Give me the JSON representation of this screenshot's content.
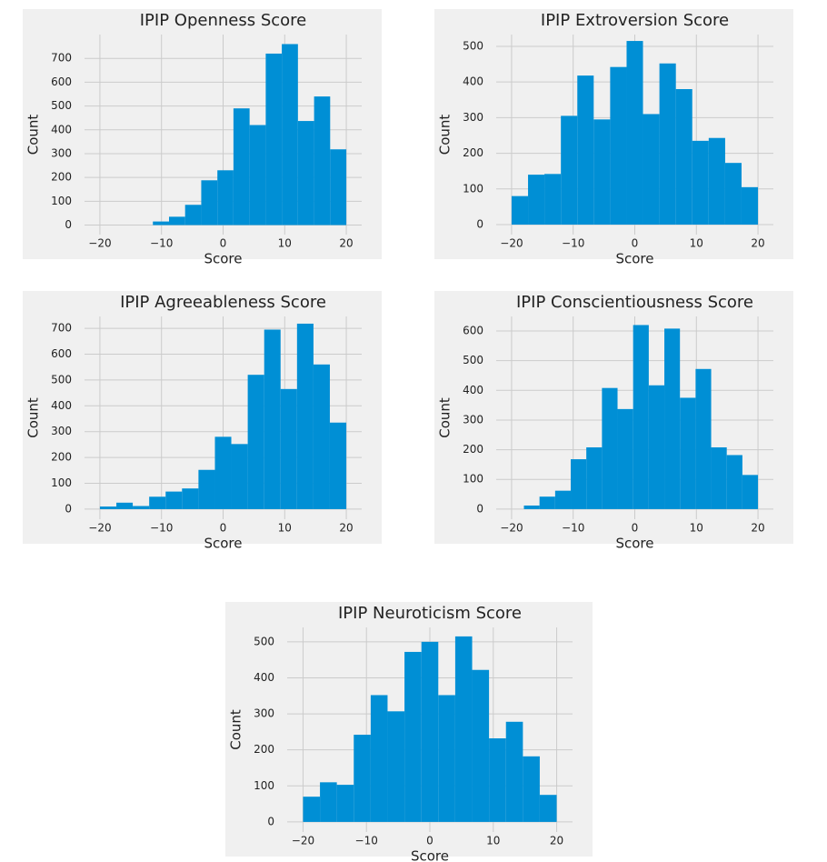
{
  "chart_data": [
    {
      "type": "histogram",
      "title": "IPIP Openness Score",
      "xlabel": "Score",
      "ylabel": "Count",
      "color": "#008fd5",
      "grid": true,
      "bins": [
        -11.4,
        -8.78,
        -6.17,
        -3.55,
        -0.93,
        1.68,
        4.3,
        6.92,
        9.53,
        12.15,
        14.77,
        17.38,
        20
      ],
      "values": [
        15,
        35,
        85,
        188,
        230,
        490,
        420,
        720,
        760,
        437,
        540,
        318
      ],
      "xlim": [
        -22.5,
        22.5
      ],
      "xticks": [
        {
          "value": -20,
          "label": "−20"
        },
        {
          "value": -10,
          "label": "−10"
        },
        0,
        10,
        20
      ],
      "ylim": [
        -40,
        800
      ],
      "yticks": [
        0,
        100,
        200,
        300,
        400,
        500,
        600,
        700
      ]
    },
    {
      "type": "histogram",
      "title": "IPIP Extroversion Score",
      "xlabel": "Score",
      "ylabel": "Count",
      "color": "#008fd5",
      "grid": true,
      "bins": [
        -20,
        -17.33,
        -14.67,
        -12,
        -9.33,
        -6.67,
        -4,
        -1.33,
        1.33,
        4,
        6.67,
        9.33,
        12,
        14.67,
        17.33,
        20
      ],
      "values": [
        80,
        140,
        142,
        305,
        418,
        295,
        442,
        515,
        310,
        452,
        380,
        235,
        243,
        173,
        105
      ],
      "xlim": [
        -22.5,
        22.5
      ],
      "xticks": [
        {
          "value": -20,
          "label": "−20"
        },
        {
          "value": -10,
          "label": "−10"
        },
        0,
        10,
        20
      ],
      "ylim": [
        -28,
        533
      ],
      "yticks": [
        0,
        100,
        200,
        300,
        400,
        500
      ]
    },
    {
      "type": "histogram",
      "title": "IPIP Agreeableness Score",
      "xlabel": "Score",
      "ylabel": "Count",
      "color": "#008fd5",
      "grid": true,
      "bins": [
        -20,
        -17.33,
        -14.67,
        -12,
        -9.33,
        -6.67,
        -4,
        -1.33,
        1.33,
        4,
        6.67,
        9.33,
        12,
        14.67,
        17.33,
        20
      ],
      "values": [
        10,
        25,
        12,
        48,
        68,
        80,
        152,
        280,
        252,
        520,
        695,
        465,
        718,
        560,
        335
      ],
      "xlim": [
        -22.5,
        22.5
      ],
      "xticks": [
        {
          "value": -20,
          "label": "−20"
        },
        {
          "value": -10,
          "label": "−10"
        },
        0,
        10,
        20
      ],
      "ylim": [
        -39,
        746
      ],
      "yticks": [
        0,
        100,
        200,
        300,
        400,
        500,
        600,
        700
      ]
    },
    {
      "type": "histogram",
      "title": "IPIP Conscientiousness Score",
      "xlabel": "Score",
      "ylabel": "Count",
      "color": "#008fd5",
      "grid": true,
      "bins": [
        -18,
        -15.47,
        -12.93,
        -10.4,
        -7.87,
        -5.33,
        -2.8,
        -0.27,
        2.27,
        4.8,
        7.33,
        9.87,
        12.4,
        14.93,
        17.47,
        20
      ],
      "values": [
        12,
        42,
        62,
        168,
        208,
        408,
        337,
        620,
        417,
        608,
        375,
        472,
        208,
        182,
        115
      ],
      "xlim": [
        -22.5,
        22.5
      ],
      "xticks": [
        {
          "value": -20,
          "label": "−20"
        },
        {
          "value": -10,
          "label": "−10"
        },
        0,
        10,
        20
      ],
      "ylim": [
        -34,
        649
      ],
      "yticks": [
        0,
        100,
        200,
        300,
        400,
        500,
        600
      ]
    },
    {
      "type": "histogram",
      "title": "IPIP Neuroticism Score",
      "xlabel": "Score",
      "ylabel": "Count",
      "color": "#008fd5",
      "grid": true,
      "bins": [
        -20,
        -17.33,
        -14.67,
        -12,
        -9.33,
        -6.67,
        -4,
        -1.33,
        1.33,
        4,
        6.67,
        9.33,
        12,
        14.67,
        17.33,
        20
      ],
      "values": [
        70,
        110,
        103,
        242,
        352,
        307,
        472,
        500,
        352,
        515,
        422,
        232,
        278,
        182,
        75
      ],
      "xlim": [
        -22.5,
        22.5
      ],
      "xticks": [
        {
          "value": -20,
          "label": "−20"
        },
        {
          "value": -10,
          "label": "−10"
        },
        0,
        10,
        20
      ],
      "ylim": [
        -28,
        540
      ],
      "yticks": [
        0,
        100,
        200,
        300,
        400,
        500
      ]
    }
  ]
}
